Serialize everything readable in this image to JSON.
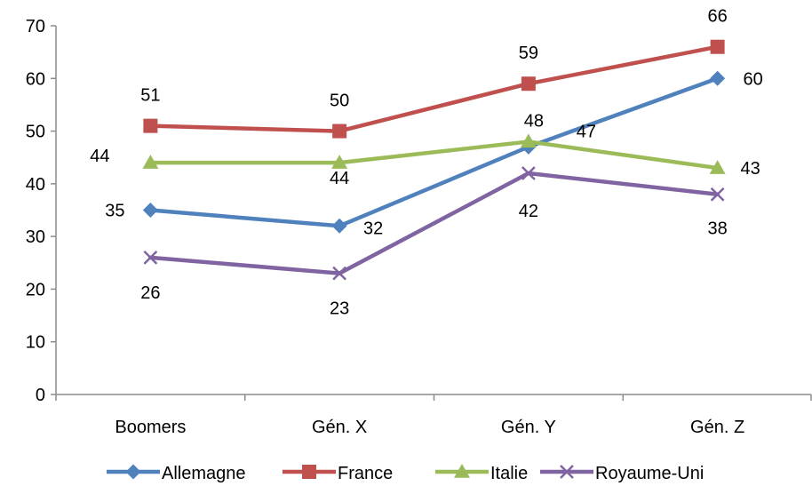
{
  "chart_data": {
    "type": "line",
    "categories": [
      "Boomers",
      "Gén. X",
      "Gén. Y",
      "Gén. Z"
    ],
    "series": [
      {
        "name": "Allemagne",
        "values": [
          35,
          32,
          47,
          60
        ],
        "color": "#4f81bd",
        "marker": "diamond"
      },
      {
        "name": "France",
        "values": [
          51,
          50,
          59,
          66
        ],
        "color": "#c0504d",
        "marker": "square"
      },
      {
        "name": "Italie",
        "values": [
          44,
          44,
          48,
          43
        ],
        "color": "#9bbb59",
        "marker": "triangle"
      },
      {
        "name": "Royaume-Uni",
        "values": [
          26,
          23,
          42,
          38
        ],
        "color": "#8064a2",
        "marker": "x"
      }
    ],
    "ylim": [
      0,
      70
    ],
    "yticks": [
      0,
      10,
      20,
      30,
      40,
      50,
      60,
      70
    ],
    "grid": false,
    "legend": "bottom",
    "data_labels": true
  }
}
